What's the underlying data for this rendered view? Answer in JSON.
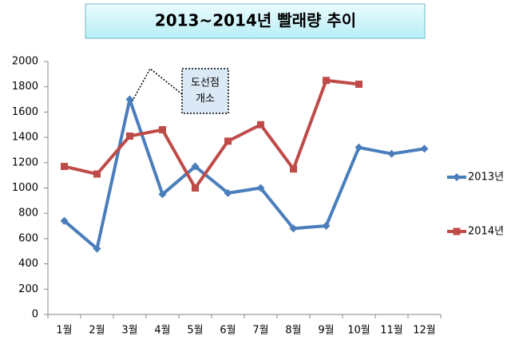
{
  "chart_data": {
    "type": "line",
    "title": "2013~2014년 빨래량 추이",
    "annotation": [
      "도선점",
      "개소"
    ],
    "categories": [
      "1월",
      "2월",
      "3월",
      "4월",
      "5월",
      "6월",
      "7월",
      "8월",
      "9월",
      "10월",
      "11월",
      "12월"
    ],
    "series": [
      {
        "name": "2013년",
        "color": "#4a7ebb",
        "marker": "diamond",
        "values": [
          740,
          520,
          1700,
          950,
          1170,
          960,
          1000,
          680,
          700,
          1320,
          1270,
          1310
        ]
      },
      {
        "name": "2014년",
        "color": "#be4b48",
        "marker": "square",
        "values": [
          1170,
          1110,
          1410,
          1460,
          1000,
          1370,
          1500,
          1150,
          1850,
          1820,
          null,
          null
        ]
      }
    ],
    "ylim": [
      0,
      2000
    ],
    "yticks": [
      0,
      200,
      400,
      600,
      800,
      1000,
      1200,
      1400,
      1600,
      1800,
      2000
    ],
    "grid": false,
    "legend": "right"
  }
}
